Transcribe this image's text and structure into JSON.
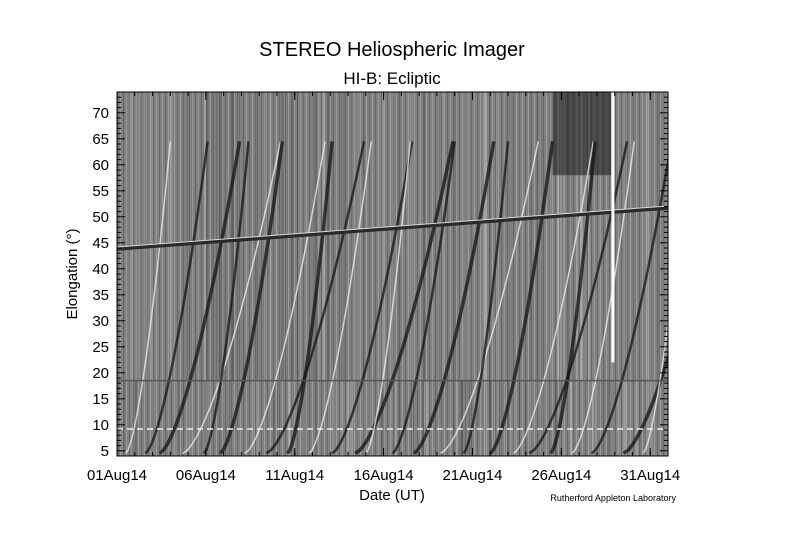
{
  "chart_data": {
    "type": "heatmap",
    "title": "STEREO Heliospheric Imager",
    "subtitle": "HI-B: Ecliptic",
    "xlabel": "Date (UT)",
    "ylabel": "Elongation (°)",
    "credit": "Rutherford Appleton Laboratory",
    "x_tick_labels": [
      "01Aug14",
      "06Aug14",
      "11Aug14",
      "16Aug14",
      "21Aug14",
      "26Aug14",
      "31Aug14"
    ],
    "x_tick_days": [
      1,
      6,
      11,
      16,
      21,
      26,
      31
    ],
    "xlim_days": [
      1,
      32
    ],
    "y_ticks": [
      5,
      10,
      15,
      20,
      25,
      30,
      35,
      40,
      45,
      50,
      55,
      60,
      65,
      70
    ],
    "ylim": [
      4,
      74
    ],
    "hi1_hi2_boundary_elongation": 18.5,
    "features": {
      "planet_track": {
        "start_day": 1,
        "start_elong": 43.8,
        "end_day": 32,
        "end_elong": 51.7
      },
      "hi1_dashed_track": {
        "elong": 9.2
      },
      "data_gap_day": 28.9
    }
  },
  "colors": {
    "background": "#ffffff",
    "plot_mid_gray": "#7f7f7f",
    "axis": "#000000"
  }
}
